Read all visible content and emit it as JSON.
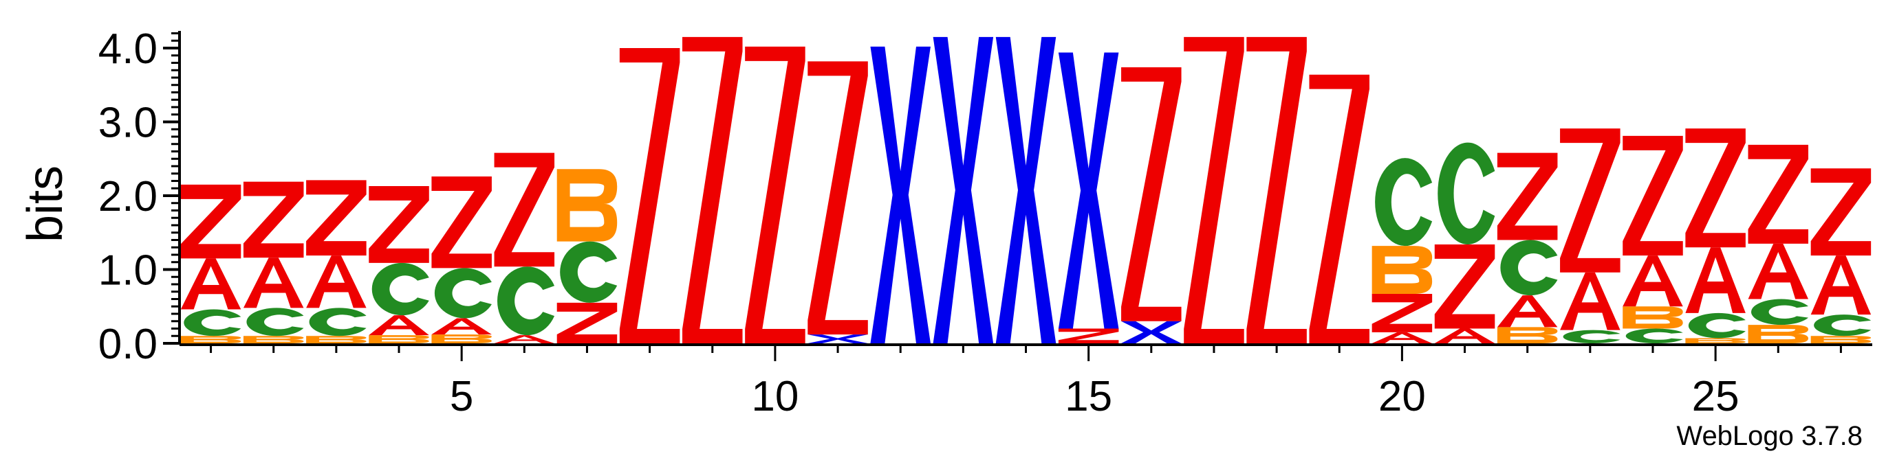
{
  "chart_data": {
    "type": "sequence_logo",
    "ylabel": "bits",
    "ylim": [
      0,
      4.0
    ],
    "y_ticks": [
      "0.0",
      "1.0",
      "2.0",
      "3.0",
      "4.0"
    ],
    "x_ticks": [
      5,
      10,
      15,
      20,
      25
    ],
    "positions": [
      1,
      27
    ],
    "footer": "WebLogo 3.7.8",
    "colors": {
      "Z": "#ee0000",
      "A": "#ee0000",
      "C": "#228b22",
      "B": "#ff8c00",
      "X": "#0000ee"
    },
    "columns": [
      {
        "position": 1,
        "stack": [
          {
            "letter": "B",
            "height": 0.1
          },
          {
            "letter": "C",
            "height": 0.36
          },
          {
            "letter": "A",
            "height": 0.69
          },
          {
            "letter": "Z",
            "height": 1.0
          }
        ]
      },
      {
        "position": 2,
        "stack": [
          {
            "letter": "B",
            "height": 0.1
          },
          {
            "letter": "C",
            "height": 0.38
          },
          {
            "letter": "A",
            "height": 0.68
          },
          {
            "letter": "Z",
            "height": 1.03
          }
        ]
      },
      {
        "position": 3,
        "stack": [
          {
            "letter": "B",
            "height": 0.1
          },
          {
            "letter": "C",
            "height": 0.38
          },
          {
            "letter": "A",
            "height": 0.71
          },
          {
            "letter": "Z",
            "height": 1.02
          }
        ]
      },
      {
        "position": 4,
        "stack": [
          {
            "letter": "B",
            "height": 0.11
          },
          {
            "letter": "A",
            "height": 0.27
          },
          {
            "letter": "C",
            "height": 0.71
          },
          {
            "letter": "Z",
            "height": 1.04
          }
        ]
      },
      {
        "position": 5,
        "stack": [
          {
            "letter": "B",
            "height": 0.12
          },
          {
            "letter": "A",
            "height": 0.22
          },
          {
            "letter": "C",
            "height": 0.68
          },
          {
            "letter": "Z",
            "height": 1.24
          }
        ]
      },
      {
        "position": 6,
        "stack": [
          {
            "letter": "A",
            "height": 0.11
          },
          {
            "letter": "C",
            "height": 0.93
          },
          {
            "letter": "Z",
            "height": 1.54
          }
        ]
      },
      {
        "position": 7,
        "stack": [
          {
            "letter": "Z",
            "height": 0.55
          },
          {
            "letter": "C",
            "height": 0.83
          },
          {
            "letter": "B",
            "height": 0.98
          }
        ]
      },
      {
        "position": 8,
        "stack": [
          {
            "letter": "Z",
            "height": 4.0
          }
        ]
      },
      {
        "position": 9,
        "stack": [
          {
            "letter": "Z",
            "height": 4.15
          }
        ]
      },
      {
        "position": 10,
        "stack": [
          {
            "letter": "Z",
            "height": 4.02
          }
        ]
      },
      {
        "position": 11,
        "stack": [
          {
            "letter": "X",
            "height": 0.12
          },
          {
            "letter": "Z",
            "height": 3.7
          }
        ]
      },
      {
        "position": 12,
        "stack": [
          {
            "letter": "X",
            "height": 4.02
          }
        ]
      },
      {
        "position": 13,
        "stack": [
          {
            "letter": "X",
            "height": 4.15
          }
        ]
      },
      {
        "position": 14,
        "stack": [
          {
            "letter": "X",
            "height": 4.15
          }
        ]
      },
      {
        "position": 15,
        "stack": [
          {
            "letter": "Z",
            "height": 0.2
          },
          {
            "letter": "X",
            "height": 3.74
          }
        ]
      },
      {
        "position": 16,
        "stack": [
          {
            "letter": "X",
            "height": 0.3
          },
          {
            "letter": "Z",
            "height": 3.44
          }
        ]
      },
      {
        "position": 17,
        "stack": [
          {
            "letter": "Z",
            "height": 4.15
          }
        ]
      },
      {
        "position": 18,
        "stack": [
          {
            "letter": "Z",
            "height": 4.15
          }
        ]
      },
      {
        "position": 19,
        "stack": [
          {
            "letter": "Z",
            "height": 3.64
          }
        ]
      },
      {
        "position": 20,
        "stack": [
          {
            "letter": "A",
            "height": 0.15
          },
          {
            "letter": "Z",
            "height": 0.52
          },
          {
            "letter": "B",
            "height": 0.65
          },
          {
            "letter": "C",
            "height": 1.19
          }
        ]
      },
      {
        "position": 21,
        "stack": [
          {
            "letter": "A",
            "height": 0.2
          },
          {
            "letter": "Z",
            "height": 1.14
          },
          {
            "letter": "C",
            "height": 1.38
          }
        ]
      },
      {
        "position": 22,
        "stack": [
          {
            "letter": "B",
            "height": 0.22
          },
          {
            "letter": "A",
            "height": 0.43
          },
          {
            "letter": "C",
            "height": 0.75
          },
          {
            "letter": "Z",
            "height": 1.18
          }
        ]
      },
      {
        "position": 23,
        "stack": [
          {
            "letter": "C",
            "height": 0.18
          },
          {
            "letter": "A",
            "height": 0.78
          },
          {
            "letter": "Z",
            "height": 1.95
          }
        ]
      },
      {
        "position": 24,
        "stack": [
          {
            "letter": "C",
            "height": 0.2
          },
          {
            "letter": "B",
            "height": 0.3
          },
          {
            "letter": "A",
            "height": 0.69
          },
          {
            "letter": "Z",
            "height": 1.62
          }
        ]
      },
      {
        "position": 25,
        "stack": [
          {
            "letter": "B",
            "height": 0.07
          },
          {
            "letter": "C",
            "height": 0.34
          },
          {
            "letter": "A",
            "height": 0.89
          },
          {
            "letter": "Z",
            "height": 1.61
          }
        ]
      },
      {
        "position": 26,
        "stack": [
          {
            "letter": "B",
            "height": 0.25
          },
          {
            "letter": "C",
            "height": 0.35
          },
          {
            "letter": "A",
            "height": 0.75
          },
          {
            "letter": "Z",
            "height": 1.34
          }
        ]
      },
      {
        "position": 27,
        "stack": [
          {
            "letter": "B",
            "height": 0.1
          },
          {
            "letter": "C",
            "height": 0.29
          },
          {
            "letter": "A",
            "height": 0.8
          },
          {
            "letter": "Z",
            "height": 1.18
          }
        ]
      }
    ]
  }
}
